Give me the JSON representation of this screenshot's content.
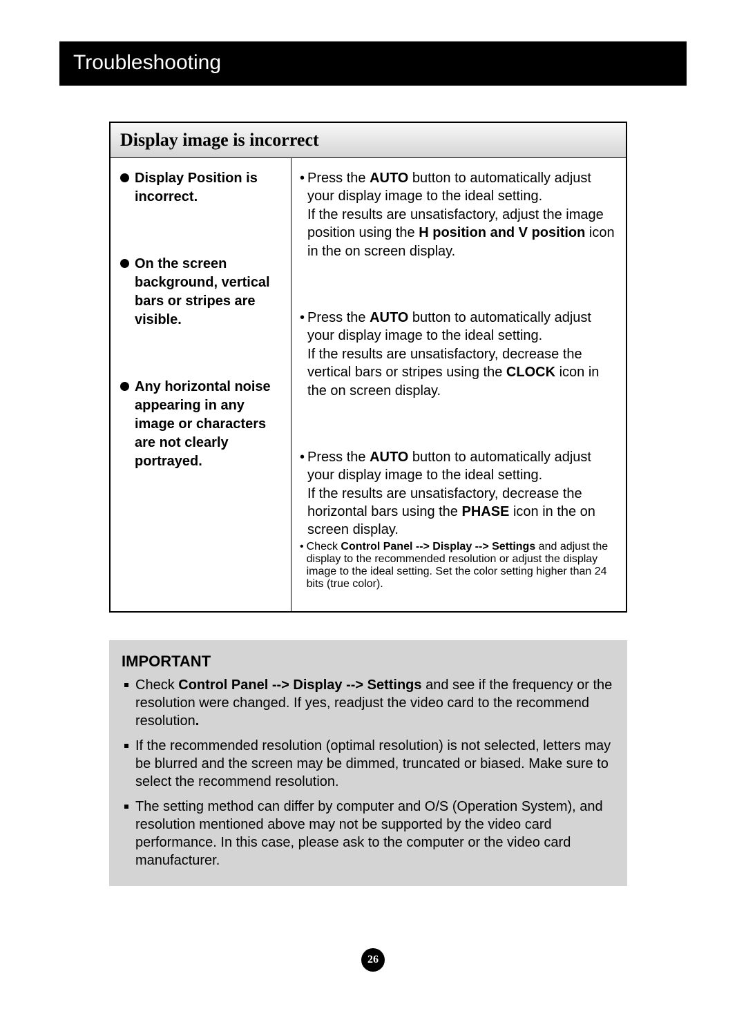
{
  "header": "Troubleshooting",
  "table": {
    "title": "Display image is incorrect",
    "rows": [
      {
        "problem": "Display Position is incorrect.",
        "solution_html": "Press the <b>AUTO</b> button to automatically adjust your display image to the ideal setting.<br>If the results are unsatisfactory, adjust the image position using the <b>H position and V position</b> icon in the on screen display."
      },
      {
        "problem": "On the screen background, vertical bars or stripes are visible.",
        "solution_html": "Press the <b>AUTO</b> button to automatically adjust your display image to the ideal setting.<br>If the results are unsatisfactory, decrease the vertical bars or stripes using the <b>CLOCK</b> icon in the on screen display."
      },
      {
        "problem": "Any horizontal noise appearing in any image or characters are not clearly portrayed.",
        "solution_html": "Press the <b>AUTO</b> button to automatically adjust your display image to the ideal setting.<br>If the results are unsatisfactory, decrease the horizontal bars using the <b>PHASE</b> icon in the on screen display.",
        "extra_html": "Check <b>Control Panel --&gt; Display --&gt; Settings</b> and adjust the display to the recommended resolution or adjust the display image to the ideal setting. Set the color setting higher than 24 bits (true color)."
      }
    ]
  },
  "important": {
    "title": "IMPORTANT",
    "items": [
      "Check <b>Control Panel --&gt; Display --&gt; Settings</b> and see if the frequency or the resolution were changed. If yes, readjust the video card to the recommend resolution<b>.</b>",
      "If the recommended resolution (optimal resolution) is not selected, letters may be blurred and the screen may be dimmed, truncated or biased. Make sure to select the recommend resolution.",
      "The setting method can differ by computer and O/S (Operation System), and resolution mentioned above may not be supported by the video card performance. In this case, please ask to the computer or the video card manufacturer."
    ]
  },
  "page_number": "26"
}
